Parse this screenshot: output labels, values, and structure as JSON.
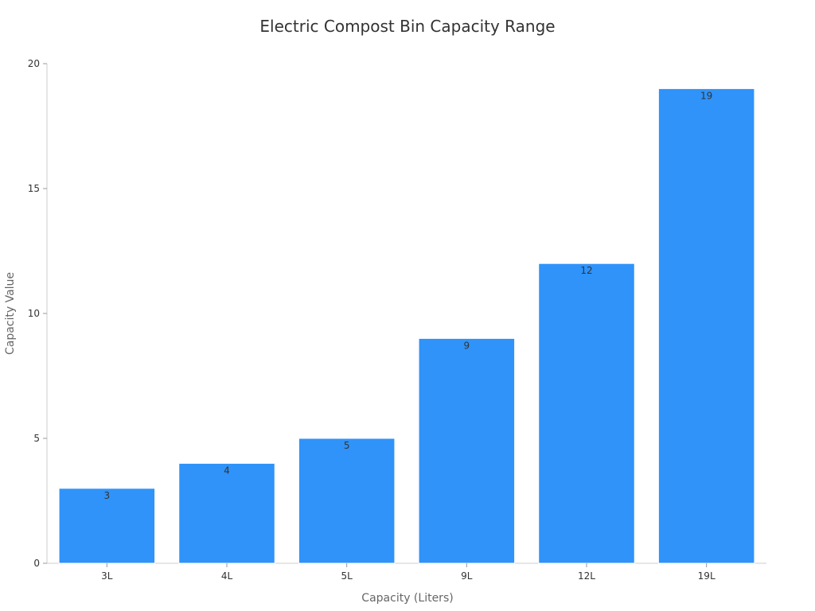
{
  "chart_data": {
    "type": "bar",
    "title": "Electric Compost Bin Capacity Range",
    "xlabel": "Capacity (Liters)",
    "ylabel": "Capacity Value",
    "categories": [
      "3L",
      "4L",
      "5L",
      "9L",
      "12L",
      "19L"
    ],
    "values": [
      3,
      4,
      5,
      9,
      12,
      19
    ],
    "ylim": [
      0,
      20
    ],
    "yticks": [
      0,
      5,
      10,
      15,
      20
    ],
    "grid": false,
    "bar_color": "#2f93fa",
    "bar_edge_color": "#ffffff",
    "show_data_labels": true
  }
}
